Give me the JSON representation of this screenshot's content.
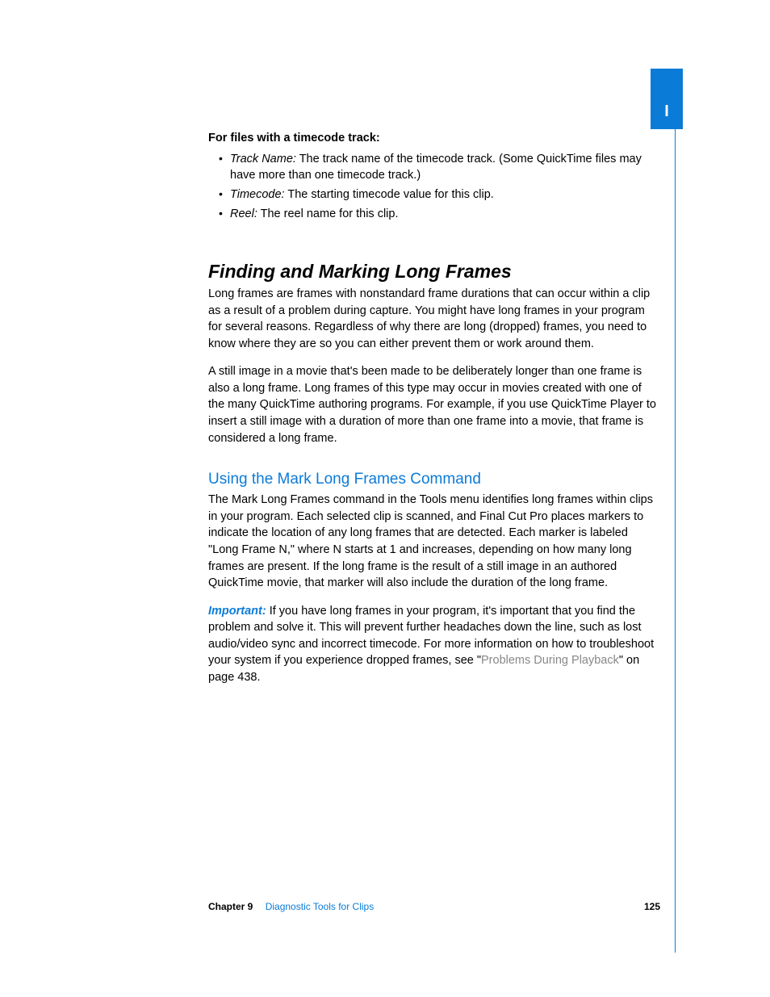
{
  "colors": {
    "link_blue": "#0b7bd8",
    "xref_grey": "#888888",
    "text": "#000000",
    "background": "#ffffff"
  },
  "sideTab": {
    "label": "I"
  },
  "timecodeSection": {
    "lead": "For files with a timecode track:",
    "items": [
      {
        "term": "Track Name:",
        "desc": "The track name of the timecode track. (Some QuickTime files may have more than one timecode track.)"
      },
      {
        "term": "Timecode:",
        "desc": "The starting timecode value for this clip."
      },
      {
        "term": "Reel:",
        "desc": "The reel name for this clip."
      }
    ]
  },
  "section": {
    "title": "Finding and Marking Long Frames",
    "para1": "Long frames are frames with nonstandard frame durations that can occur within a clip as a result of a problem during capture. You might have long frames in your program for several reasons. Regardless of why there are long (dropped) frames, you need to know where they are so you can either prevent them or work around them.",
    "para2": "A still image in a movie that's been made to be deliberately longer than one frame is also a long frame. Long frames of this type may occur in movies created with one of the many QuickTime authoring programs. For example, if you use QuickTime Player to insert a still image with a duration of more than one frame into a movie, that frame is considered a long frame."
  },
  "subsection": {
    "title": "Using the Mark Long Frames Command",
    "para1": "The Mark Long Frames command in the Tools menu identifies long frames within clips in your program. Each selected clip is scanned, and Final Cut Pro places markers to indicate the location of any long frames that are detected. Each marker is labeled \"Long Frame N,\" where N starts at 1 and increases, depending on how many long frames are present. If the long frame is the result of a still image in an authored QuickTime movie, that marker will also include the duration of the long frame.",
    "important": {
      "label": "Important:",
      "text_before": "If you have long frames in your program, it's important that you find the problem and solve it. This will prevent further headaches down the line, such as lost audio/video sync and incorrect timecode. For more information on how to troubleshoot your system if you experience dropped frames, see \"",
      "xref": "Problems During Playback",
      "text_after": "\" on page 438."
    }
  },
  "footer": {
    "chapter_label": "Chapter 9",
    "chapter_title": "Diagnostic Tools for Clips",
    "page": "125"
  }
}
